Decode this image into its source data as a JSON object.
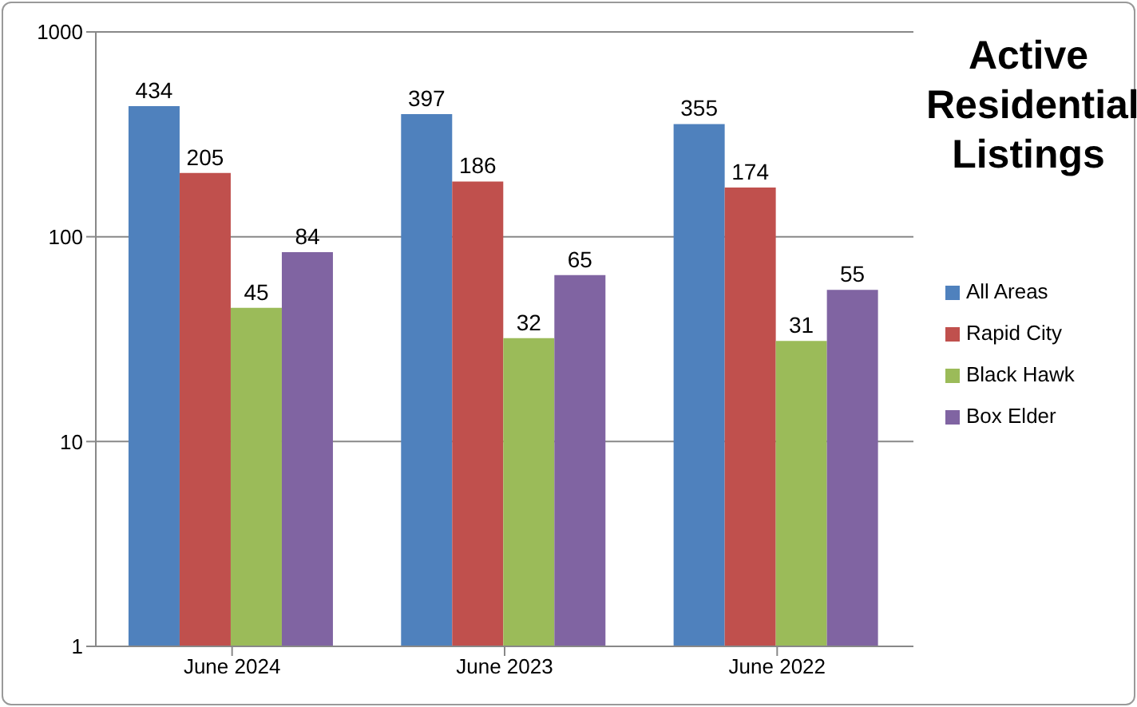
{
  "chart_data": {
    "type": "bar",
    "title": "Active Residential Listings",
    "categories": [
      "June 2024",
      "June 2023",
      "June 2022"
    ],
    "series": [
      {
        "name": "All Areas",
        "color": "#4f81bd",
        "values": [
          434,
          397,
          355
        ]
      },
      {
        "name": "Rapid City",
        "color": "#c0504d",
        "values": [
          205,
          186,
          174
        ]
      },
      {
        "name": "Black Hawk",
        "color": "#9bbb59",
        "values": [
          45,
          32,
          31
        ]
      },
      {
        "name": "Box Elder",
        "color": "#8064a2",
        "values": [
          84,
          65,
          55
        ]
      }
    ],
    "log": true,
    "ylim": [
      1,
      1000
    ],
    "yticks": [
      1,
      10,
      100,
      1000
    ],
    "grid": "y",
    "legend": "right",
    "data_labels": true
  }
}
